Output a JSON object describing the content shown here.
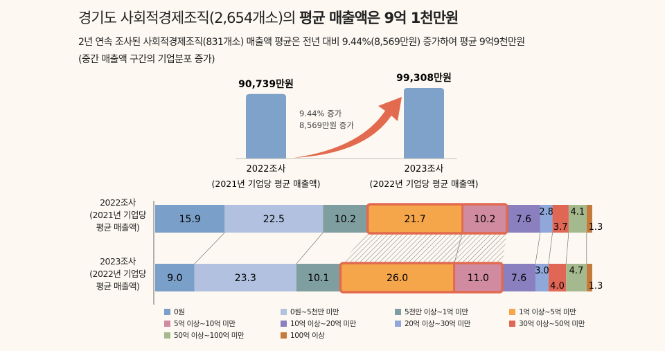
{
  "header": {
    "title_plain": "경기도 사회적경제조직(2,654개소)의 ",
    "title_bold": "평균 매출액은 9억 1천만원",
    "subtitle_line1": "2년 연속 조사된 사회적경제조직(831개소) 매출액 평균은 전년 대비 9.44%(8,569만원) 증가하여 평균 9억9천만원",
    "subtitle_line2": "(중간 매출액 구간의 기업분포 증가)"
  },
  "chart_data": [
    {
      "type": "bar",
      "categories": [
        "2022조사",
        "2023조사"
      ],
      "category_sublabels": [
        "(2021년 기업당 평균 매출액)",
        "(2022년 기업당 평균 매출액)"
      ],
      "values": [
        90739,
        99308
      ],
      "data_labels": [
        "90,739만원",
        "99,308만원"
      ],
      "unit": "만원",
      "annotation": [
        "9.44% 증가",
        "8,569만원 증가"
      ],
      "colors": {
        "bar": "#7ea2c9",
        "arrow": "#e26a4f"
      }
    },
    {
      "type": "bar",
      "stacked": true,
      "orientation": "horizontal",
      "percent": true,
      "categories": [
        "2022조사\n(2021년 기업당\n평균 매출액)",
        "2023조사\n(2022년 기업당\n평균 매출액)"
      ],
      "category_lines": [
        [
          "2022조사",
          "(2021년 기업당",
          "평균 매출액)"
        ],
        [
          "2023조사",
          "(2022년 기업당",
          "평균 매출액)"
        ]
      ],
      "series": [
        {
          "name": "0원",
          "color": "#7a9fc8",
          "values": [
            15.9,
            9.0
          ]
        },
        {
          "name": "0원~5천만 미만",
          "color": "#b1c1df",
          "values": [
            22.5,
            23.3
          ]
        },
        {
          "name": "5천만 이상~1억 미만",
          "color": "#7f9ea0",
          "values": [
            10.2,
            10.1
          ]
        },
        {
          "name": "1억 이상~5억 미만",
          "color": "#f5a54a",
          "values": [
            21.7,
            26.0
          ]
        },
        {
          "name": "5억 이상~10억 미만",
          "color": "#d08ba1",
          "values": [
            10.2,
            11.0
          ]
        },
        {
          "name": "10억 이상~20억 미만",
          "color": "#8a80c0",
          "values": [
            7.6,
            7.6
          ]
        },
        {
          "name": "20억 이상~30억 미만",
          "color": "#8fa7d9",
          "values": [
            2.8,
            3.0
          ]
        },
        {
          "name": "30억 이상~50억 미만",
          "color": "#e06656",
          "values": [
            3.7,
            4.0
          ]
        },
        {
          "name": "50억 이상~100억 미만",
          "color": "#a4b98d",
          "values": [
            4.1,
            4.7
          ]
        },
        {
          "name": "100억 이상",
          "color": "#c47a3a",
          "values": [
            1.3,
            1.3
          ]
        }
      ],
      "highlighted_series": [
        "1억 이상~5억 미만",
        "5억 이상~10억 미만"
      ],
      "highlight_color": "#e26a4f",
      "legend": "bottom"
    }
  ]
}
